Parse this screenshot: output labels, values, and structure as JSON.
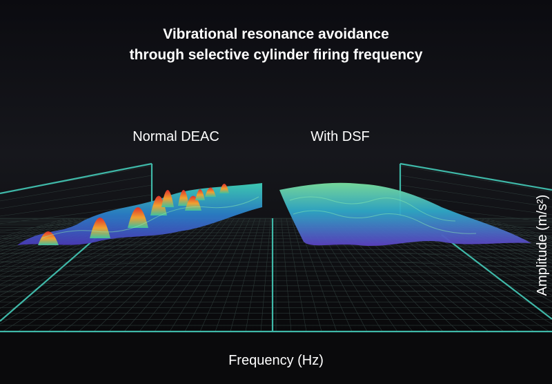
{
  "title": {
    "lines": [
      "Vibrational resonance avoidance",
      "through selective cylinder firing frequency"
    ]
  },
  "panels": [
    {
      "label": "Normal DEAC"
    },
    {
      "label": "With DSF"
    }
  ],
  "axes": {
    "x_label": "Frequency (Hz)",
    "y_label": "Amplitude (m/s²)"
  }
}
